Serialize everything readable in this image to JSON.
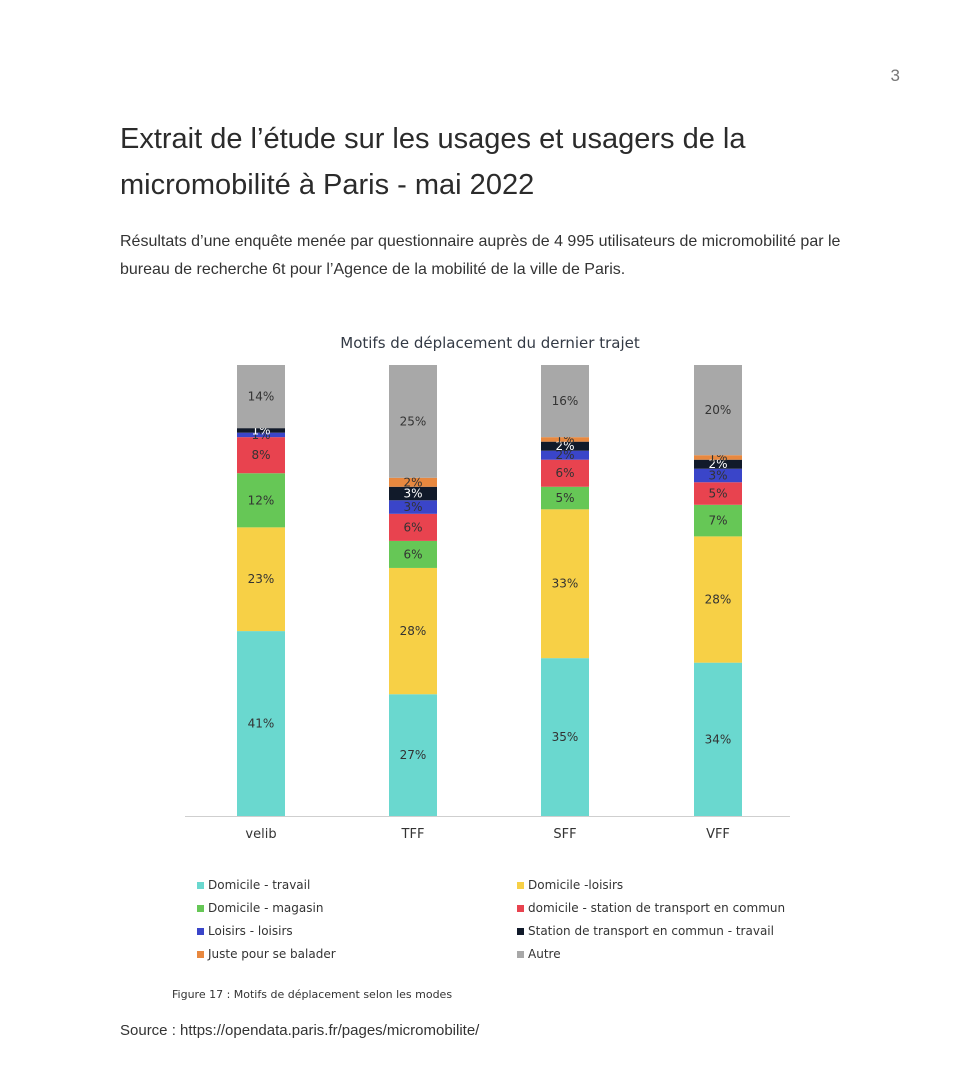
{
  "page": {
    "number": "3",
    "title": "Extrait de l’étude sur les usages et usagers de la micromobilité à Paris - mai 2022",
    "intro": "Résultats d’une enquête menée par questionnaire auprès de 4 995 utilisateurs de micromobilité par le bureau de recherche 6t pour l’Agence de la mobilité de la ville de Paris.",
    "caption": "Figure 17 : Motifs de déplacement selon les modes",
    "source": "Source : https://opendata.paris.fr/pages/micromobilite/"
  },
  "chart_data": {
    "type": "bar",
    "stacked": true,
    "title": "Motifs de déplacement du dernier trajet",
    "categories": [
      "velib",
      "TFF",
      "SFF",
      "VFF"
    ],
    "ylim": [
      0,
      100
    ],
    "grid": false,
    "legend_position": "bottom",
    "value_suffix": "%",
    "series": [
      {
        "name": "Domicile - travail",
        "color": "#6ad8cf",
        "values": [
          41,
          27,
          35,
          34
        ]
      },
      {
        "name": "Domicile -loisirs",
        "color": "#f7d046",
        "values": [
          23,
          28,
          33,
          28
        ]
      },
      {
        "name": "Domicile - magasin",
        "color": "#66c756",
        "values": [
          12,
          6,
          5,
          7
        ]
      },
      {
        "name": "domicile - station de transport en commun",
        "color": "#e8434f",
        "values": [
          8,
          6,
          6,
          5
        ]
      },
      {
        "name": "Loisirs - loisirs",
        "color": "#3a45c9",
        "values": [
          1,
          3,
          2,
          3
        ]
      },
      {
        "name": "Station de transport en commun - travail",
        "color": "#111a2a",
        "values": [
          1,
          3,
          2,
          2
        ]
      },
      {
        "name": "Juste pour se balader",
        "color": "#e8883f",
        "values": [
          0,
          2,
          1,
          1
        ]
      },
      {
        "name": "Autre",
        "color": "#a8a8a8",
        "values": [
          14,
          25,
          16,
          20
        ]
      }
    ],
    "legend_order": [
      0,
      1,
      2,
      3,
      4,
      5,
      6,
      7
    ]
  }
}
